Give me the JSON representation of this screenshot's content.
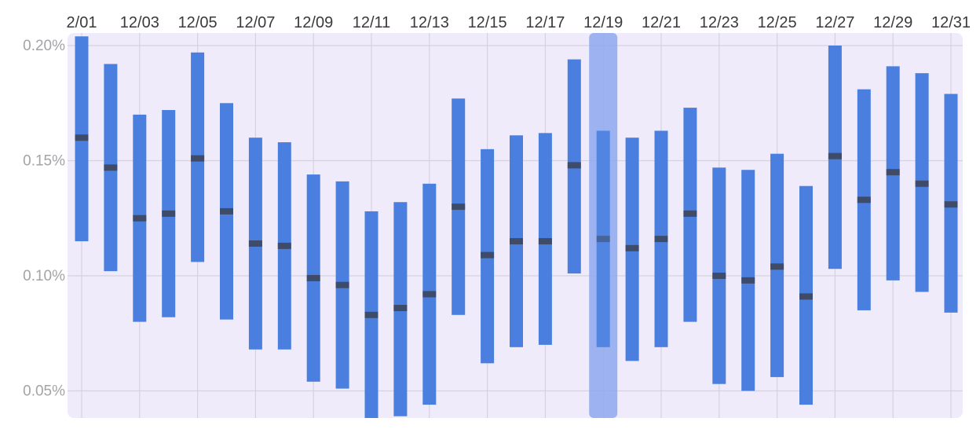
{
  "chart_data": {
    "type": "bar",
    "subtype": "range-with-median",
    "title": "",
    "xlabel": "",
    "ylabel": "",
    "x_axis_position": "top",
    "grid": true,
    "ylim": [
      0.04,
      0.205
    ],
    "y_unit": "%",
    "y_ticks": [
      {
        "value": 0.05,
        "label": "0.05%"
      },
      {
        "value": 0.1,
        "label": "0.10%"
      },
      {
        "value": 0.15,
        "label": "0.15%"
      },
      {
        "value": 0.2,
        "label": "0.20%"
      }
    ],
    "categories": [
      "12/01",
      "12/02",
      "12/03",
      "12/04",
      "12/05",
      "12/06",
      "12/07",
      "12/08",
      "12/09",
      "12/10",
      "12/11",
      "12/12",
      "12/13",
      "12/14",
      "12/15",
      "12/16",
      "12/17",
      "12/18",
      "12/19",
      "12/20",
      "12/21",
      "12/22",
      "12/23",
      "12/24",
      "12/25",
      "12/26",
      "12/27",
      "12/28",
      "12/29",
      "12/30",
      "12/31"
    ],
    "x_tick_labels": [
      "2/01",
      "12/03",
      "12/05",
      "12/07",
      "12/09",
      "12/11",
      "12/13",
      "12/15",
      "12/17",
      "12/19",
      "12/21",
      "12/23",
      "12/25",
      "12/27",
      "12/29",
      "12/31"
    ],
    "series": [
      {
        "values_low": [
          0.115,
          0.102,
          0.08,
          0.082,
          0.106,
          0.081,
          0.068,
          0.068,
          0.054,
          0.051,
          0.038,
          0.039,
          0.044,
          0.083,
          0.062,
          0.069,
          0.07,
          0.101,
          0.069,
          0.063,
          0.069,
          0.08,
          0.053,
          0.05,
          0.056,
          0.044,
          0.103,
          0.085,
          0.098,
          0.093,
          0.084
        ],
        "values_high": [
          0.204,
          0.192,
          0.17,
          0.172,
          0.197,
          0.175,
          0.16,
          0.158,
          0.144,
          0.141,
          0.128,
          0.132,
          0.14,
          0.177,
          0.155,
          0.161,
          0.162,
          0.194,
          0.163,
          0.16,
          0.163,
          0.173,
          0.147,
          0.146,
          0.153,
          0.139,
          0.2,
          0.181,
          0.191,
          0.188,
          0.179
        ],
        "values_median": [
          0.16,
          0.147,
          0.125,
          0.127,
          0.151,
          0.128,
          0.114,
          0.113,
          0.099,
          0.096,
          0.083,
          0.086,
          0.092,
          0.13,
          0.109,
          0.115,
          0.115,
          0.148,
          0.116,
          0.112,
          0.116,
          0.127,
          0.1,
          0.098,
          0.104,
          0.091,
          0.152,
          0.133,
          0.145,
          0.14,
          0.131
        ]
      }
    ],
    "highlighted_category": "12/19",
    "colors": {
      "bar": "#4a7fdf",
      "median": "#3d4a63",
      "plot_background": "#efebfb",
      "gridline": "#d5d2e0",
      "highlight": "#8ea9ee"
    }
  }
}
